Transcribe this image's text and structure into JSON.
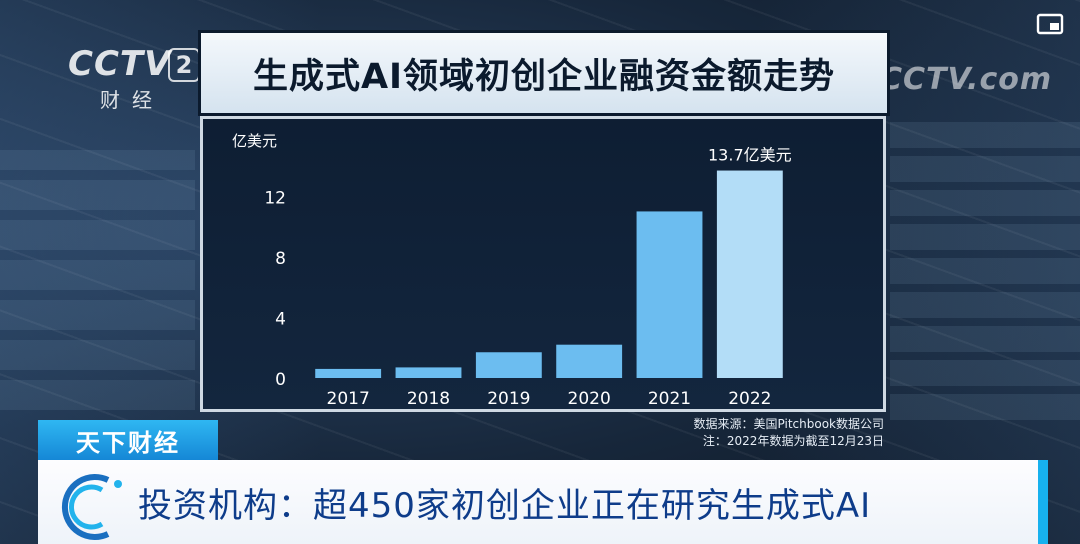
{
  "channel": {
    "logo": "CCTV",
    "number": "2",
    "name": "财经",
    "watermark": "CCTV.com"
  },
  "title": "生成式AI领域初创企业融资金额走势",
  "source_lines": [
    "数据来源：美国Pitchbook数据公司",
    "注：2022年数据为截至12月23日"
  ],
  "program_tag": "天下财经",
  "headline": "投资机构：超450家初创企业正在研究生成式AI",
  "colors": {
    "bar": "#6cbdf0",
    "bar_light": "#b3ddf7",
    "accent": "#17b1ee",
    "headline": "#0e3c8a"
  },
  "chart_data": {
    "type": "bar",
    "title": "生成式AI领域初创企业融资金额走势",
    "ylabel": "亿美元",
    "categories": [
      "2017",
      "2018",
      "2019",
      "2020",
      "2021",
      "2022"
    ],
    "values": [
      0.6,
      0.7,
      1.7,
      2.2,
      11.0,
      13.7
    ],
    "yticks": [
      0,
      4,
      8,
      12
    ],
    "ylim": [
      0,
      14
    ],
    "annotations": [
      {
        "category": "2022",
        "text": "13.7亿美元"
      }
    ],
    "grid": false
  }
}
